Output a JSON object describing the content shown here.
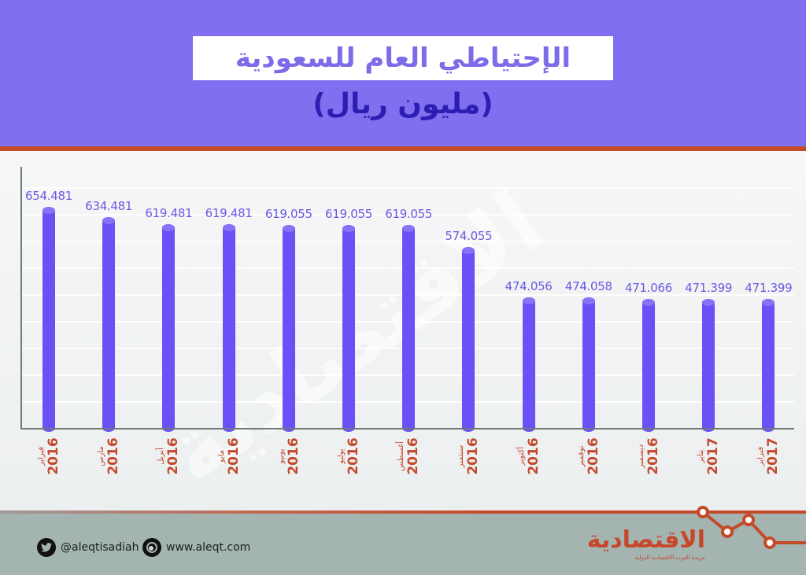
{
  "header": {
    "title": "الإحتياطي العام للسعودية",
    "subtitle": "(مليون ريال)"
  },
  "colors": {
    "header_bg": "#8070ef",
    "accent_orange": "#c44b2a",
    "bar": "#6a50f5",
    "value_label": "#6b58e2",
    "footer_bg": "#a3b4b1"
  },
  "chart_data": {
    "type": "bar",
    "title": "الإحتياطي العام للسعودية",
    "subtitle": "(مليون ريال)",
    "xlabel": "",
    "ylabel": "مليون ريال",
    "categories": [
      "فبراير 2016",
      "مارس 2016",
      "أبريل 2016",
      "مايو 2016",
      "يونيو 2016",
      "يوليو 2016",
      "أغسطس 2016",
      "سبتمبر 2016",
      "أكتوبر 2016",
      "نوفمبر 2016",
      "ديسمبر 2016",
      "يناير 2017",
      "فبراير 2017"
    ],
    "values": [
      654.481,
      634.481,
      619.481,
      619.481,
      619.055,
      619.055,
      619.055,
      574.055,
      474.056,
      474.058,
      471.066,
      471.399,
      471.399
    ],
    "value_labels": [
      "654.481",
      "634.481",
      "619.481",
      "619.481",
      "619.055",
      "619.055",
      "619.055",
      "574.055",
      "474.056",
      "474.058",
      "471.066",
      "471.399",
      "471.399"
    ],
    "months": [
      "فبراير",
      "مارس",
      "أبريل",
      "مايو",
      "يونيو",
      "يوليو",
      "أغسطس",
      "سبتمبر",
      "أكتوبر",
      "نوفمبر",
      "ديسمبر",
      "يناير",
      "فبراير"
    ],
    "years": [
      "2016",
      "2016",
      "2016",
      "2016",
      "2016",
      "2016",
      "2016",
      "2016",
      "2016",
      "2016",
      "2016",
      "2017",
      "2017"
    ],
    "grid": true,
    "legend": null
  },
  "footer": {
    "twitter_icon": "twitter-icon",
    "twitter_handle": "@aleqtisadiah",
    "web_icon": "globe-icon",
    "website": "www.aleqt.com",
    "logo_text": "الاقتصادية",
    "logo_tagline": "جريدة العرب الاقتصادية الدولية"
  }
}
